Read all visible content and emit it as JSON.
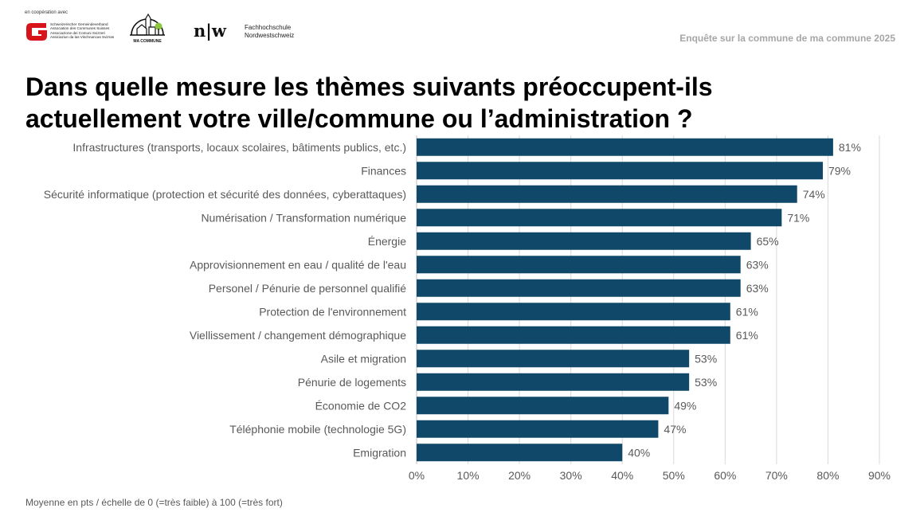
{
  "header": {
    "cooperation": "en coopération avec",
    "sgv_lines": [
      "Schweizerischer Gemeindeverband",
      "Association des Communes Suisses",
      "Associazione dei Comuni Svizzeri",
      "Assiciaziun da las Vischnancas Svizras"
    ],
    "ma_commune": "MA COMMUNE",
    "fhnw_mark": "n|w",
    "fhnw_line1": "Fachhochschule",
    "fhnw_line2": "Nordwestschweiz",
    "survey_title": "Enquête sur la commune de ma commune 2025"
  },
  "title_line1": "Dans quelle mesure les thèmes suivants préoccupent-ils",
  "title_line2": "actuellement votre ville/commune ou l’administration ?",
  "footnote": "Moyenne en pts / échelle de 0 (=très faible) à 100 (=très fort)",
  "colors": {
    "bar": "#0f4868",
    "grid": "#d9d9d9",
    "label": "#595959"
  },
  "chart_data": {
    "type": "bar",
    "orientation": "horizontal",
    "categories": [
      "Infrastructures (transports, locaux scolaires, bâtiments publics, etc.)",
      "Finances",
      "Sécurité informatique (protection et sécurité des données, cyberattaques)",
      "Numérisation / Transformation numérique",
      "Énergie",
      "Approvisionnement en eau / qualité de l'eau",
      "Personel / Pénurie de personnel qualifié",
      "Protection de l'environnement",
      "Viellissement / changement démographique",
      "Asile et migration",
      "Pénurie de logements",
      "Économie de CO2",
      "Téléphonie mobile (technologie 5G)",
      "Emigration"
    ],
    "values": [
      81,
      79,
      74,
      71,
      65,
      63,
      63,
      61,
      61,
      53,
      53,
      49,
      47,
      40
    ],
    "value_labels": [
      "81%",
      "79%",
      "74%",
      "71%",
      "65%",
      "63%",
      "63%",
      "61%",
      "61%",
      "53%",
      "53%",
      "49%",
      "47%",
      "40%"
    ],
    "xlim": [
      0,
      90
    ],
    "xticks": [
      0,
      10,
      20,
      30,
      40,
      50,
      60,
      70,
      80,
      90
    ],
    "xtick_labels": [
      "0%",
      "10%",
      "20%",
      "30%",
      "40%",
      "50%",
      "60%",
      "70%",
      "80%",
      "90%"
    ],
    "grid": true
  }
}
